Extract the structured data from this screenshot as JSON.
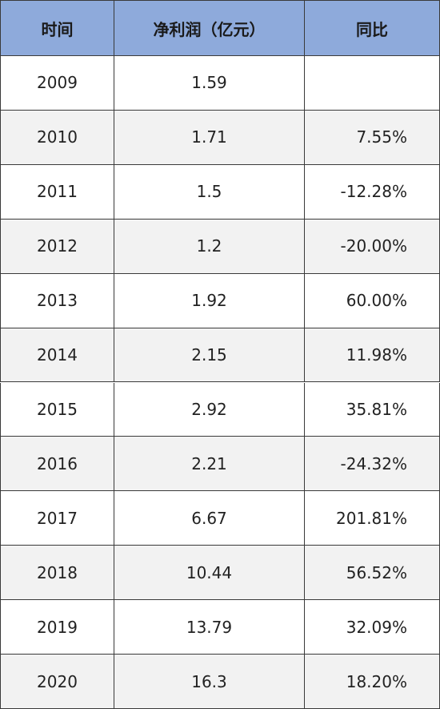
{
  "table": {
    "header": [
      "时间",
      "净利润（亿元）",
      "同比"
    ],
    "rows": [
      [
        "2009",
        "1.59",
        null
      ],
      [
        "2010",
        "1.71",
        "7.55%"
      ],
      [
        "2011",
        "1.5",
        "-12.28%"
      ],
      [
        "2012",
        "1.2",
        "-20.00%"
      ],
      [
        "2013",
        "1.92",
        "60.00%"
      ],
      [
        "2014",
        "2.15",
        "11.98%"
      ],
      [
        "2015",
        "2.92",
        "35.81%"
      ],
      [
        "2016",
        "2.21",
        "-24.32%"
      ],
      [
        "2017",
        "6.67",
        "201.81%"
      ],
      [
        "2018",
        "10.44",
        "56.52%"
      ],
      [
        "2019",
        "13.79",
        "32.09%"
      ],
      [
        "2020",
        "16.3",
        "18.20%"
      ]
    ]
  }
}
